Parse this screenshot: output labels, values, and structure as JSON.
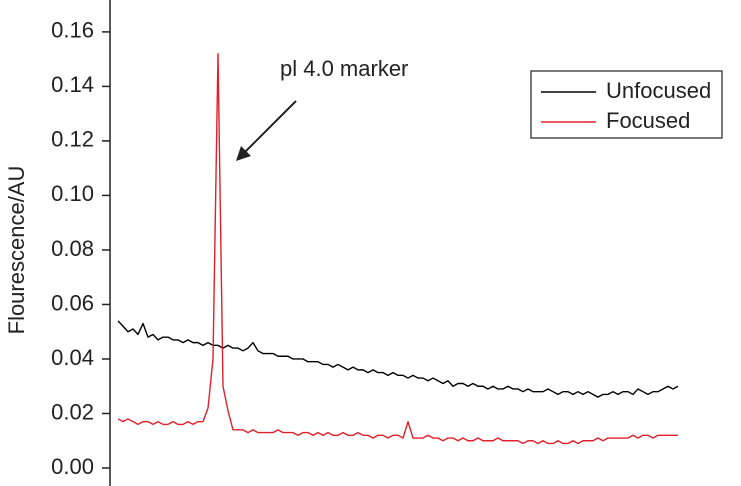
{
  "chart_data": {
    "type": "line",
    "y_label": "Flourescence/AU",
    "annotation": "pl 4.0 marker",
    "ylim": [
      -0.0066,
      0.1717
    ],
    "yticks": [
      {
        "value": 0,
        "label": "0.00"
      },
      0.02,
      0.04,
      0.06,
      0.08,
      {
        "value": 0.1,
        "label": "0.10"
      },
      0.12,
      0.14,
      0.16
    ],
    "series": [
      {
        "name": "Unfocused",
        "color": "#000000",
        "values": [
          0.054,
          0.052,
          0.05,
          0.051,
          0.049,
          0.053,
          0.048,
          0.049,
          0.047,
          0.048,
          0.048,
          0.047,
          0.047,
          0.046,
          0.047,
          0.046,
          0.046,
          0.045,
          0.046,
          0.045,
          0.045,
          0.044,
          0.045,
          0.044,
          0.044,
          0.043,
          0.044,
          0.046,
          0.043,
          0.042,
          0.042,
          0.042,
          0.041,
          0.041,
          0.041,
          0.04,
          0.04,
          0.04,
          0.039,
          0.039,
          0.039,
          0.038,
          0.038,
          0.037,
          0.038,
          0.037,
          0.036,
          0.037,
          0.036,
          0.036,
          0.035,
          0.036,
          0.035,
          0.035,
          0.034,
          0.035,
          0.034,
          0.034,
          0.033,
          0.034,
          0.033,
          0.033,
          0.032,
          0.033,
          0.032,
          0.031,
          0.032,
          0.03,
          0.031,
          0.031,
          0.03,
          0.031,
          0.03,
          0.03,
          0.029,
          0.03,
          0.029,
          0.029,
          0.03,
          0.029,
          0.029,
          0.028,
          0.029,
          0.028,
          0.028,
          0.028,
          0.029,
          0.028,
          0.027,
          0.028,
          0.028,
          0.027,
          0.028,
          0.027,
          0.028,
          0.027,
          0.026,
          0.027,
          0.027,
          0.028,
          0.027,
          0.028,
          0.028,
          0.027,
          0.029,
          0.028,
          0.027,
          0.028,
          0.028,
          0.029,
          0.03,
          0.029,
          0.03
        ]
      },
      {
        "name": "Focused",
        "color": "#e0202a",
        "values": [
          0.018,
          0.017,
          0.018,
          0.017,
          0.016,
          0.017,
          0.017,
          0.016,
          0.017,
          0.016,
          0.016,
          0.017,
          0.016,
          0.016,
          0.017,
          0.016,
          0.017,
          0.017,
          0.022,
          0.04,
          0.152,
          0.03,
          0.021,
          0.014,
          0.014,
          0.014,
          0.013,
          0.014,
          0.013,
          0.013,
          0.013,
          0.013,
          0.014,
          0.013,
          0.013,
          0.013,
          0.012,
          0.013,
          0.013,
          0.012,
          0.013,
          0.012,
          0.013,
          0.012,
          0.012,
          0.013,
          0.012,
          0.012,
          0.013,
          0.012,
          0.012,
          0.011,
          0.012,
          0.012,
          0.011,
          0.012,
          0.012,
          0.011,
          0.017,
          0.011,
          0.011,
          0.011,
          0.012,
          0.011,
          0.011,
          0.01,
          0.011,
          0.011,
          0.01,
          0.011,
          0.01,
          0.01,
          0.011,
          0.01,
          0.01,
          0.01,
          0.011,
          0.01,
          0.01,
          0.01,
          0.01,
          0.009,
          0.01,
          0.01,
          0.009,
          0.01,
          0.009,
          0.009,
          0.01,
          0.009,
          0.009,
          0.01,
          0.009,
          0.01,
          0.01,
          0.01,
          0.011,
          0.01,
          0.011,
          0.011,
          0.011,
          0.011,
          0.011,
          0.012,
          0.011,
          0.012,
          0.012,
          0.011,
          0.012,
          0.012,
          0.012,
          0.012,
          0.012
        ]
      }
    ],
    "legend": "upper-right"
  }
}
